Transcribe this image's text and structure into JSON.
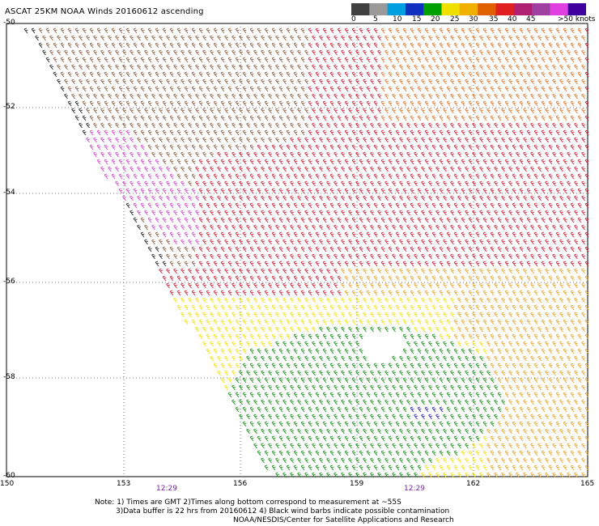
{
  "title": "ASCAT 25KM NOAA Winds 20160612 ascending",
  "colorbar": {
    "labels": [
      "0",
      "5",
      "10",
      "15",
      "20",
      "25",
      "30",
      "35",
      "40",
      "45",
      ">50 knots"
    ],
    "colors": [
      "#404040",
      "#9a9a9a",
      "#00a0e0",
      "#1030c0",
      "#00a000",
      "#f0e000",
      "#f0b000",
      "#e06000",
      "#e02020",
      "#b02070",
      "#a040a0",
      "#e040e0",
      "#4000a0"
    ]
  },
  "axes": {
    "x_ticks": [
      "150",
      "153",
      "156",
      "159",
      "162",
      "165"
    ],
    "y_ticks": [
      "-50",
      "-52",
      "-54",
      "-56",
      "-58",
      "-60"
    ]
  },
  "times": [
    "12:29",
    "12:29"
  ],
  "notes": {
    "line1": "Note: 1) Times are GMT 2)Times along bottom correspond to measurement at ~55S",
    "line2": "3)Data buffer is 22 hrs from 20160612 4) Black wind barbs indicate possible contamination",
    "line3": "NOAA/NESDIS/Center for Satellite Applications and Research"
  },
  "map_colors": {
    "brown": "#8a5a3c",
    "red": "#d01830",
    "orange": "#e07020",
    "gold": "#e8a020",
    "yellow": "#f0e000",
    "green": "#109010",
    "magenta": "#d040d0",
    "black": "#202020",
    "blue": "#2020c0"
  }
}
